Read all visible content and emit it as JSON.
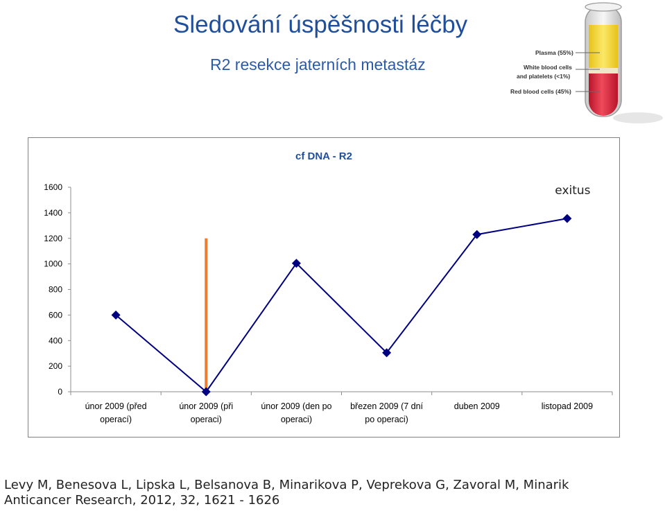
{
  "slide": {
    "title": "Sledování úspěšnosti léčby",
    "subtitle": "R2 resekce jaterních metastáz"
  },
  "illustration": {
    "plasma": "Plasma (55%)",
    "wbc_line1": "White blood cells",
    "wbc_line2": "and platelets (<1%)",
    "rbc": "Red blood cells (45%)",
    "colors": {
      "plasma": "#f2de3c",
      "rbc": "#d8283a"
    }
  },
  "chart_data": {
    "type": "line",
    "title": "cf DNA - R2",
    "categories": [
      [
        "únor 2009 (před",
        "operací)"
      ],
      [
        "únor 2009 (při",
        "operaci)"
      ],
      [
        "únor 2009 (den po",
        "operaci)"
      ],
      [
        "březen 2009 (7 dní",
        "po operaci)"
      ],
      [
        "duben 2009"
      ],
      [
        "listopad 2009"
      ]
    ],
    "series": [
      {
        "values": [
          600,
          0,
          1005,
          305,
          1230,
          1355
        ],
        "color": "#000080",
        "marker": "diamond"
      }
    ],
    "ylim": [
      0,
      1600
    ],
    "yticks": [
      0,
      200,
      400,
      600,
      800,
      1000,
      1200,
      1400,
      1600
    ],
    "grid": false,
    "annotations": [
      {
        "type": "vline",
        "category_index": 1,
        "from": 0,
        "to": 1200,
        "color": "#ed7d31"
      },
      {
        "type": "text",
        "text": "exitus",
        "near_category_index": 5,
        "y": 1590
      }
    ]
  },
  "citation": {
    "line1": "Levy M, Benesova L, Lipska L, Belsanova B, Minarikova P, Veprekova G, Zavoral M, Minarik",
    "line2": "Anticancer Research, 2012, 32, 1621 - 1626"
  }
}
